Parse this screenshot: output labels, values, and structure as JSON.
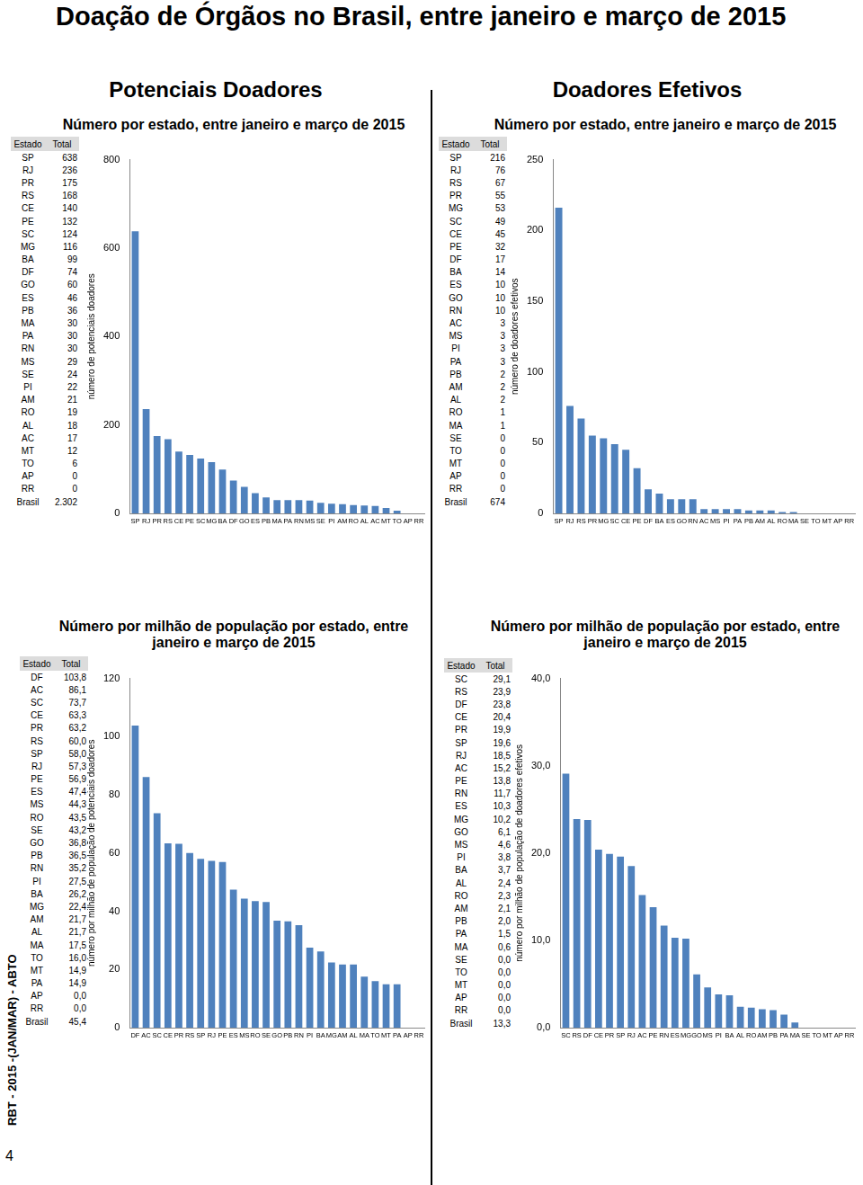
{
  "page": {
    "title": "Doação de Órgãos no Brasil, entre janeiro e março de 2015",
    "sidebar": "RBT - 2015 -(JAN/MAR) - ABTO",
    "page_number": "4"
  },
  "chart_data": [
    {
      "type": "bar",
      "section": "Potenciais Doadores",
      "title": "Número por estado, entre janeiro e março de 2015",
      "y_label": "número de potenciais doadores",
      "categories": [
        "SP",
        "RJ",
        "PR",
        "RS",
        "CE",
        "PE",
        "SC",
        "MG",
        "BA",
        "DF",
        "GO",
        "ES",
        "PB",
        "MA",
        "PA",
        "RN",
        "MS",
        "SE",
        "PI",
        "AM",
        "RO",
        "AL",
        "AC",
        "MT",
        "TO",
        "AP",
        "RR"
      ],
      "values": [
        638,
        236,
        175,
        168,
        140,
        132,
        124,
        116,
        99,
        74,
        60,
        46,
        36,
        30,
        30,
        30,
        29,
        24,
        22,
        21,
        19,
        18,
        17,
        12,
        6,
        0,
        0
      ],
      "color": "#4f81bd",
      "ylim": [
        0,
        800
      ],
      "yticks": [
        0,
        200,
        400,
        600,
        800
      ],
      "grid": false,
      "table": {
        "columns": [
          "Estado",
          "Total"
        ],
        "rows": [
          [
            "SP",
            "638"
          ],
          [
            "RJ",
            "236"
          ],
          [
            "PR",
            "175"
          ],
          [
            "RS",
            "168"
          ],
          [
            "CE",
            "140"
          ],
          [
            "PE",
            "132"
          ],
          [
            "SC",
            "124"
          ],
          [
            "MG",
            "116"
          ],
          [
            "BA",
            "99"
          ],
          [
            "DF",
            "74"
          ],
          [
            "GO",
            "60"
          ],
          [
            "ES",
            "46"
          ],
          [
            "PB",
            "36"
          ],
          [
            "MA",
            "30"
          ],
          [
            "PA",
            "30"
          ],
          [
            "RN",
            "30"
          ],
          [
            "MS",
            "29"
          ],
          [
            "SE",
            "24"
          ],
          [
            "PI",
            "22"
          ],
          [
            "AM",
            "21"
          ],
          [
            "RO",
            "19"
          ],
          [
            "AL",
            "18"
          ],
          [
            "AC",
            "17"
          ],
          [
            "MT",
            "12"
          ],
          [
            "TO",
            "6"
          ],
          [
            "AP",
            "0"
          ],
          [
            "RR",
            "0"
          ],
          [
            "Brasil",
            "2.302"
          ]
        ]
      }
    },
    {
      "type": "bar",
      "section": "Doadores Efetivos",
      "title": "Número por estado, entre janeiro e março de 2015",
      "y_label": "número de doadores efetivos",
      "categories": [
        "SP",
        "RJ",
        "RS",
        "PR",
        "MG",
        "SC",
        "CE",
        "PE",
        "DF",
        "BA",
        "ES",
        "GO",
        "RN",
        "AC",
        "MS",
        "PI",
        "PA",
        "PB",
        "AM",
        "AL",
        "RO",
        "MA",
        "SE",
        "TO",
        "MT",
        "AP",
        "RR"
      ],
      "values": [
        216,
        76,
        67,
        55,
        53,
        49,
        45,
        32,
        17,
        14,
        10,
        10,
        10,
        3,
        3,
        3,
        3,
        2,
        2,
        2,
        1,
        1,
        0,
        0,
        0,
        0,
        0
      ],
      "color": "#4f81bd",
      "ylim": [
        0,
        250
      ],
      "yticks": [
        0,
        50,
        100,
        150,
        200,
        250
      ],
      "grid": false,
      "table": {
        "columns": [
          "Estado",
          "Total"
        ],
        "rows": [
          [
            "SP",
            "216"
          ],
          [
            "RJ",
            "76"
          ],
          [
            "RS",
            "67"
          ],
          [
            "PR",
            "55"
          ],
          [
            "MG",
            "53"
          ],
          [
            "SC",
            "49"
          ],
          [
            "CE",
            "45"
          ],
          [
            "PE",
            "32"
          ],
          [
            "DF",
            "17"
          ],
          [
            "BA",
            "14"
          ],
          [
            "ES",
            "10"
          ],
          [
            "GO",
            "10"
          ],
          [
            "RN",
            "10"
          ],
          [
            "AC",
            "3"
          ],
          [
            "MS",
            "3"
          ],
          [
            "PI",
            "3"
          ],
          [
            "PA",
            "3"
          ],
          [
            "PB",
            "2"
          ],
          [
            "AM",
            "2"
          ],
          [
            "AL",
            "2"
          ],
          [
            "RO",
            "1"
          ],
          [
            "MA",
            "1"
          ],
          [
            "SE",
            "0"
          ],
          [
            "TO",
            "0"
          ],
          [
            "MT",
            "0"
          ],
          [
            "AP",
            "0"
          ],
          [
            "RR",
            "0"
          ],
          [
            "Brasil",
            "674"
          ]
        ]
      }
    },
    {
      "type": "bar",
      "title": "Número por milhão de população por estado, entre janeiro e março de 2015",
      "y_label": "número por milhão de população de potenciais doadores",
      "categories": [
        "DF",
        "AC",
        "SC",
        "CE",
        "PR",
        "RS",
        "SP",
        "RJ",
        "PE",
        "ES",
        "MS",
        "RO",
        "SE",
        "GO",
        "PB",
        "RN",
        "PI",
        "BA",
        "MG",
        "AM",
        "AL",
        "MA",
        "TO",
        "MT",
        "PA",
        "AP",
        "RR"
      ],
      "values": [
        103.8,
        86.1,
        73.7,
        63.3,
        63.2,
        60.0,
        58.0,
        57.3,
        56.9,
        47.4,
        44.3,
        43.5,
        43.2,
        36.8,
        36.5,
        35.2,
        27.5,
        26.2,
        22.4,
        21.7,
        21.7,
        17.5,
        16.0,
        14.9,
        14.9,
        0,
        0
      ],
      "color": "#4f81bd",
      "ylim": [
        0,
        120
      ],
      "yticks": [
        0,
        20,
        40,
        60,
        80,
        100,
        120
      ],
      "grid": false,
      "table": {
        "columns": [
          "Estado",
          "Total"
        ],
        "rows": [
          [
            "DF",
            "103,8"
          ],
          [
            "AC",
            "86,1"
          ],
          [
            "SC",
            "73,7"
          ],
          [
            "CE",
            "63,3"
          ],
          [
            "PR",
            "63,2"
          ],
          [
            "RS",
            "60,0"
          ],
          [
            "SP",
            "58,0"
          ],
          [
            "RJ",
            "57,3"
          ],
          [
            "PE",
            "56,9"
          ],
          [
            "ES",
            "47,4"
          ],
          [
            "MS",
            "44,3"
          ],
          [
            "RO",
            "43,5"
          ],
          [
            "SE",
            "43,2"
          ],
          [
            "GO",
            "36,8"
          ],
          [
            "PB",
            "36,5"
          ],
          [
            "RN",
            "35,2"
          ],
          [
            "PI",
            "27,5"
          ],
          [
            "BA",
            "26,2"
          ],
          [
            "MG",
            "22,4"
          ],
          [
            "AM",
            "21,7"
          ],
          [
            "AL",
            "21,7"
          ],
          [
            "MA",
            "17,5"
          ],
          [
            "TO",
            "16,0"
          ],
          [
            "MT",
            "14,9"
          ],
          [
            "PA",
            "14,9"
          ],
          [
            "AP",
            "0,0"
          ],
          [
            "RR",
            "0,0"
          ],
          [
            "Brasil",
            "45,4"
          ]
        ]
      }
    },
    {
      "type": "bar",
      "title": "Número por milhão de população por estado, entre janeiro e março de 2015",
      "y_label": "número por milhão de população de doadores efetivos",
      "categories": [
        "SC",
        "RS",
        "DF",
        "CE",
        "PR",
        "SP",
        "RJ",
        "AC",
        "PE",
        "RN",
        "ES",
        "MG",
        "GO",
        "MS",
        "PI",
        "BA",
        "AL",
        "RO",
        "AM",
        "PB",
        "PA",
        "MA",
        "SE",
        "TO",
        "MT",
        "AP",
        "RR"
      ],
      "values": [
        29.1,
        23.9,
        23.8,
        20.4,
        19.9,
        19.6,
        18.5,
        15.2,
        13.8,
        11.7,
        10.3,
        10.2,
        6.1,
        4.6,
        3.8,
        3.7,
        2.4,
        2.3,
        2.1,
        2.0,
        1.5,
        0.6,
        0,
        0,
        0,
        0,
        0
      ],
      "color": "#4f81bd",
      "ylim": [
        0,
        40
      ],
      "yticks": [
        {
          "value": 0,
          "label": "0,0"
        },
        {
          "value": 10,
          "label": "10,0"
        },
        {
          "value": 20,
          "label": "20,0"
        },
        {
          "value": 30,
          "label": "30,0"
        },
        {
          "value": 40,
          "label": "40,0"
        }
      ],
      "grid": false,
      "table": {
        "columns": [
          "Estado",
          "Total"
        ],
        "rows": [
          [
            "SC",
            "29,1"
          ],
          [
            "RS",
            "23,9"
          ],
          [
            "DF",
            "23,8"
          ],
          [
            "CE",
            "20,4"
          ],
          [
            "PR",
            "19,9"
          ],
          [
            "SP",
            "19,6"
          ],
          [
            "RJ",
            "18,5"
          ],
          [
            "AC",
            "15,2"
          ],
          [
            "PE",
            "13,8"
          ],
          [
            "RN",
            "11,7"
          ],
          [
            "ES",
            "10,3"
          ],
          [
            "MG",
            "10,2"
          ],
          [
            "GO",
            "6,1"
          ],
          [
            "MS",
            "4,6"
          ],
          [
            "PI",
            "3,8"
          ],
          [
            "BA",
            "3,7"
          ],
          [
            "AL",
            "2,4"
          ],
          [
            "RO",
            "2,3"
          ],
          [
            "AM",
            "2,1"
          ],
          [
            "PB",
            "2,0"
          ],
          [
            "PA",
            "1,5"
          ],
          [
            "MA",
            "0,6"
          ],
          [
            "SE",
            "0,0"
          ],
          [
            "TO",
            "0,0"
          ],
          [
            "MT",
            "0,0"
          ],
          [
            "AP",
            "0,0"
          ],
          [
            "RR",
            "0,0"
          ],
          [
            "Brasil",
            "13,3"
          ]
        ]
      }
    }
  ]
}
